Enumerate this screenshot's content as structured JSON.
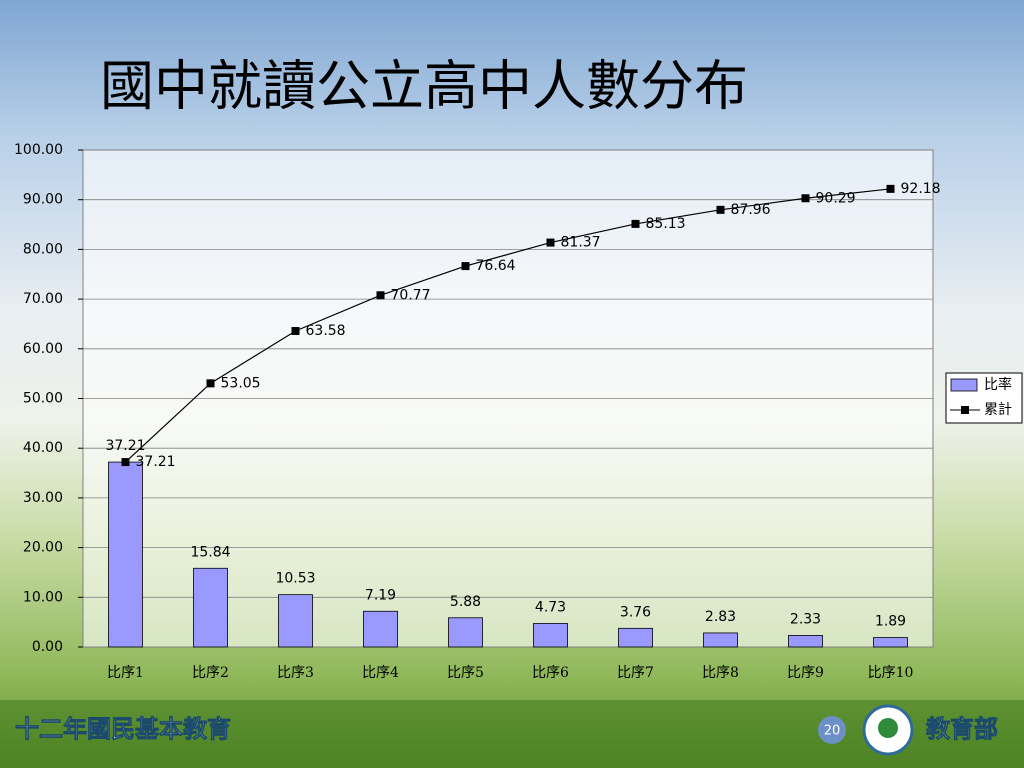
{
  "chart_data": {
    "type": "combo",
    "title": "國中就讀公立高中人數分布",
    "categories": [
      "比序1",
      "比序2",
      "比序3",
      "比序4",
      "比序5",
      "比序6",
      "比序7",
      "比序8",
      "比序9",
      "比序10"
    ],
    "series": [
      {
        "name": "比率",
        "type": "bar",
        "color": "#9999ff",
        "values": [
          37.21,
          15.84,
          10.53,
          7.19,
          5.88,
          4.73,
          3.76,
          2.83,
          2.33,
          1.89
        ]
      },
      {
        "name": "累計",
        "type": "line",
        "color": "#000000",
        "values": [
          37.21,
          53.05,
          63.58,
          70.77,
          76.64,
          81.37,
          85.13,
          87.96,
          90.29,
          92.18
        ]
      }
    ],
    "ylim": [
      0,
      100
    ],
    "yticks": [
      {
        "value": 0,
        "label": "0.00"
      },
      {
        "value": 10,
        "label": "10.00"
      },
      {
        "value": 20,
        "label": "20.00"
      },
      {
        "value": 30,
        "label": "30.00"
      },
      {
        "value": 40,
        "label": "40.00"
      },
      {
        "value": 50,
        "label": "50.00"
      },
      {
        "value": 60,
        "label": "60.00"
      },
      {
        "value": 70,
        "label": "70.00"
      },
      {
        "value": 80,
        "label": "80.00"
      },
      {
        "value": 90,
        "label": "90.00"
      },
      {
        "value": 100,
        "label": "100.00"
      }
    ],
    "grid": true,
    "legend": "right"
  },
  "footer": {
    "program": "十二年國民基本教育",
    "page": "20",
    "ministry": "教育部"
  }
}
